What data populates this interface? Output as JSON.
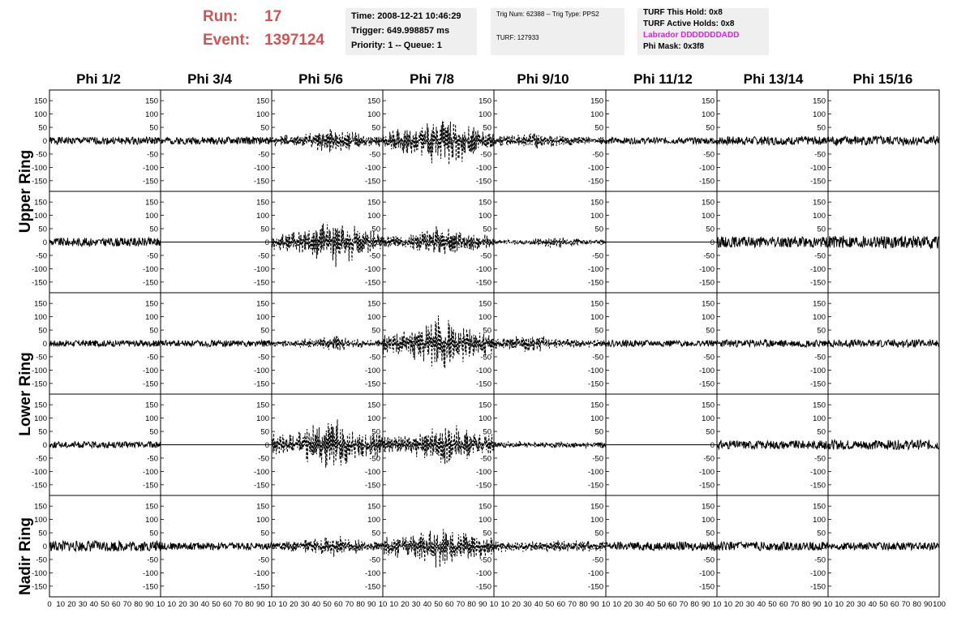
{
  "run": {
    "run_label": "Run:",
    "run_value": "17",
    "event_label": "Event:",
    "event_value": "1397124"
  },
  "time_box": {
    "time": "Time: 2008-12-21 10:46:29",
    "trigger": "Trigger: 649.998857 ms",
    "priority": "Priority: 1 -- Queue: 1"
  },
  "trig_box": {
    "trig": "Trig Num: 62388 -- Trig Type: PPS2",
    "turf": "TURF: 127933"
  },
  "turf_box": {
    "hold": "TURF This Hold: 0x8",
    "active": "TURF Active Holds: 0x8",
    "labrador": "Labrador DDDDDDDADD",
    "labrador_color": "#e020e0",
    "phimask": "Phi Mask: 0x3f8"
  },
  "columns": [
    "Phi 1/2",
    "Phi 3/4",
    "Phi 5/6",
    "Phi 7/8",
    "Phi 9/10",
    "Phi 11/12",
    "Phi 13/14",
    "Phi 15/16"
  ],
  "rings": [
    "Upper Ring",
    "Lower Ring",
    "Nadir Ring"
  ],
  "colors": {
    "run_text": "#cc5555",
    "info_bg": "#efefef",
    "trace": "#000000"
  },
  "chart_data": {
    "type": "line",
    "ylim": [
      -190,
      190
    ],
    "xlim": [
      0,
      100
    ],
    "y_ticks": [
      -150,
      -100,
      -50,
      0,
      50,
      100,
      150
    ],
    "x_ticks": [
      0,
      10,
      20,
      30,
      40,
      50,
      60,
      70,
      80,
      90,
      100
    ],
    "x_tick_labels": [
      [
        "0",
        "10",
        "20",
        "30",
        "40",
        "50",
        "60",
        "70",
        "80",
        "90",
        "10"
      ],
      [
        "10",
        "20",
        "30",
        "40",
        "50",
        "60",
        "70",
        "80",
        "90",
        "10"
      ],
      [
        "10",
        "20",
        "30",
        "40",
        "50",
        "60",
        "70",
        "80",
        "90",
        "10"
      ],
      [
        "10",
        "20",
        "30",
        "40",
        "50",
        "60",
        "70",
        "80",
        "90",
        "10"
      ],
      [
        "10",
        "20",
        "30",
        "40",
        "50",
        "60",
        "70",
        "80",
        "90",
        "10"
      ],
      [
        "10",
        "20",
        "30",
        "40",
        "50",
        "60",
        "70",
        "80",
        "90",
        "10"
      ],
      [
        "10",
        "20",
        "30",
        "40",
        "50",
        "60",
        "70",
        "80",
        "90",
        "10"
      ],
      [
        "10",
        "20",
        "30",
        "40",
        "50",
        "60",
        "70",
        "80",
        "90",
        "100"
      ]
    ],
    "panels": [
      [
        {
          "amp": 14,
          "style": "solid",
          "env": "flat",
          "seed": 1
        },
        {
          "amp": 14,
          "style": "solid",
          "env": "flat",
          "seed": 2
        },
        {
          "amp": 45,
          "style": "dashed",
          "env": "mid",
          "seed": 3
        },
        {
          "amp": 90,
          "style": "dashed",
          "env": "mid",
          "seed": 4
        },
        {
          "amp": 30,
          "style": "dashed",
          "env": "early",
          "seed": 5
        },
        {
          "amp": 12,
          "style": "solid",
          "env": "flat",
          "seed": 6
        },
        {
          "amp": 16,
          "style": "solid",
          "env": "flat",
          "seed": 7
        },
        {
          "amp": 18,
          "style": "solid",
          "env": "flat",
          "seed": 8
        }
      ],
      [
        {
          "amp": 16,
          "style": "solid",
          "env": "flat",
          "seed": 9
        },
        {
          "amp": 0,
          "style": "solid",
          "env": "flat",
          "seed": 10
        },
        {
          "amp": 80,
          "style": "dashed",
          "env": "mid",
          "seed": 11
        },
        {
          "amp": 55,
          "style": "dashed",
          "env": "mid",
          "seed": 12
        },
        {
          "amp": 18,
          "style": "dashed",
          "env": "mid",
          "seed": 13
        },
        {
          "amp": 0,
          "style": "solid",
          "env": "flat",
          "seed": 14
        },
        {
          "amp": 20,
          "style": "solid",
          "env": "flat",
          "seed": 15
        },
        {
          "amp": 24,
          "style": "solid",
          "env": "flat",
          "seed": 16
        }
      ],
      [
        {
          "amp": 12,
          "style": "solid",
          "env": "flat",
          "seed": 17
        },
        {
          "amp": 12,
          "style": "solid",
          "env": "flat",
          "seed": 18
        },
        {
          "amp": 28,
          "style": "dashed",
          "env": "mid",
          "seed": 19
        },
        {
          "amp": 95,
          "style": "dashed",
          "env": "mid",
          "seed": 20
        },
        {
          "amp": 30,
          "style": "dashed",
          "env": "early",
          "seed": 21
        },
        {
          "amp": 12,
          "style": "solid",
          "env": "flat",
          "seed": 22
        },
        {
          "amp": 14,
          "style": "solid",
          "env": "flat",
          "seed": 23
        },
        {
          "amp": 14,
          "style": "solid",
          "env": "flat",
          "seed": 24
        }
      ],
      [
        {
          "amp": 12,
          "style": "solid",
          "env": "flat",
          "seed": 25
        },
        {
          "amp": 0,
          "style": "solid",
          "env": "flat",
          "seed": 26
        },
        {
          "amp": 90,
          "style": "dashed",
          "env": "mid",
          "seed": 27
        },
        {
          "amp": 75,
          "style": "dashed",
          "env": "mid",
          "seed": 28
        },
        {
          "amp": 12,
          "style": "dashed",
          "env": "flat",
          "seed": 29
        },
        {
          "amp": 0,
          "style": "solid",
          "env": "flat",
          "seed": 30
        },
        {
          "amp": 16,
          "style": "solid",
          "env": "flat",
          "seed": 31
        },
        {
          "amp": 18,
          "style": "solid",
          "env": "flat",
          "seed": 32
        }
      ],
      [
        {
          "amp": 20,
          "style": "solid",
          "env": "flat",
          "seed": 33
        },
        {
          "amp": 14,
          "style": "solid",
          "env": "flat",
          "seed": 34
        },
        {
          "amp": 40,
          "style": "dashed",
          "env": "mid",
          "seed": 35
        },
        {
          "amp": 80,
          "style": "dashed",
          "env": "mid",
          "seed": 36
        },
        {
          "amp": 22,
          "style": "dashed",
          "env": "flat",
          "seed": 37
        },
        {
          "amp": 16,
          "style": "solid",
          "env": "flat",
          "seed": 38
        },
        {
          "amp": 16,
          "style": "solid",
          "env": "flat",
          "seed": 39
        },
        {
          "amp": 14,
          "style": "solid",
          "env": "flat",
          "seed": 40
        }
      ]
    ]
  }
}
